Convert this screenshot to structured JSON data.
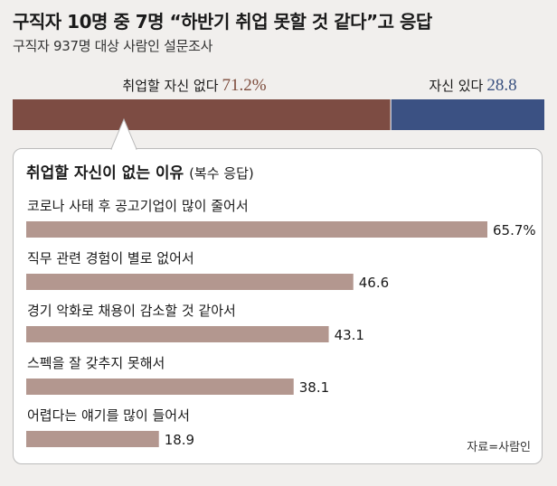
{
  "title": "구직자 10명 중 7명 “하반기 취업 못할 것 같다”고 응답",
  "subtitle": "구직자 937명 대상 사람인 설문조사",
  "colors": {
    "no_confidence": "#7d4c43",
    "confident": "#3b5183",
    "reason_bar": "#b3978f",
    "value_no_confidence": "#7d4c3c",
    "value_confident": "#39507f"
  },
  "chart_data": [
    {
      "type": "bar",
      "orientation": "horizontal-stacked",
      "series": [
        {
          "name": "취업할 자신 없다",
          "value": 71.2,
          "label": "71.2%"
        },
        {
          "name": "자신 있다",
          "value": 28.8,
          "label": "28.8"
        }
      ],
      "unit": "%"
    },
    {
      "type": "bar",
      "orientation": "horizontal",
      "title": "취업할 자신이 없는 이유",
      "subtitle": "(복수 응답)",
      "categories": [
        "코로나 사태 후 공고기업이 많이 줄어서",
        "직무 관련 경험이 별로 없어서",
        "경기 악화로 채용이 감소할 것 같아서",
        "스펙을 잘 갖추지 못해서",
        "어렵다는 얘기를 많이  들어서"
      ],
      "values": [
        65.7,
        46.6,
        43.1,
        38.1,
        18.9
      ],
      "value_labels": [
        "65.7%",
        "46.6",
        "43.1",
        "38.1",
        "18.9"
      ],
      "xlim": [
        0,
        70
      ]
    }
  ],
  "source": "자료=사람인"
}
